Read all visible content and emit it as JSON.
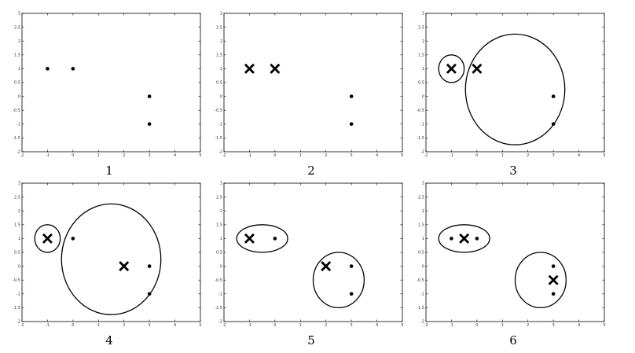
{
  "figure": {
    "panels": [
      "1",
      "2",
      "3",
      "4",
      "5",
      "6"
    ]
  },
  "colors": {
    "ink": "#000000",
    "background": "#ffffff"
  },
  "chart_data": [
    {
      "type": "scatter",
      "label": "1",
      "xlim": [
        -2,
        5
      ],
      "ylim": [
        -2,
        3
      ],
      "xticks": [
        "-2",
        "-1",
        "0",
        "1",
        "2",
        "3",
        "4",
        "5"
      ],
      "yticks": [
        "-2",
        "-1.5",
        "-1",
        "-0.5",
        "0",
        "0.5",
        "1",
        "1.5",
        "2",
        "2.5",
        "3"
      ],
      "points": [
        [
          -1,
          1
        ],
        [
          0,
          1
        ],
        [
          3,
          0
        ],
        [
          3,
          -1
        ]
      ],
      "centers": [],
      "ellipses": []
    },
    {
      "type": "scatter",
      "label": "2",
      "xlim": [
        -2,
        5
      ],
      "ylim": [
        -2,
        3
      ],
      "xticks": [
        "-2",
        "-1",
        "0",
        "1",
        "2",
        "3",
        "4",
        "5"
      ],
      "yticks": [
        "-2",
        "-1.5",
        "-1",
        "-0.5",
        "0",
        "0.5",
        "1",
        "1.5",
        "2",
        "2.5",
        "3"
      ],
      "points": [
        [
          3,
          0
        ],
        [
          3,
          -1
        ]
      ],
      "centers": [
        [
          -1,
          1
        ],
        [
          0,
          1
        ]
      ],
      "ellipses": []
    },
    {
      "type": "scatter",
      "label": "3",
      "xlim": [
        -2,
        5
      ],
      "ylim": [
        -2,
        3
      ],
      "xticks": [
        "-2",
        "-1",
        "0",
        "1",
        "2",
        "3",
        "4",
        "5"
      ],
      "yticks": [
        "-2",
        "-1.5",
        "-1",
        "-0.5",
        "0",
        "0.5",
        "1",
        "1.5",
        "2",
        "2.5",
        "3"
      ],
      "points": [
        [
          3,
          0
        ],
        [
          3,
          -1
        ]
      ],
      "centers": [
        [
          -1,
          1
        ],
        [
          0,
          1
        ]
      ],
      "ellipses": [
        {
          "cx": -1,
          "cy": 1,
          "rx": 0.5,
          "ry": 0.5
        },
        {
          "cx": 1.5,
          "cy": 0.25,
          "rx": 1.95,
          "ry": 2.0
        }
      ]
    },
    {
      "type": "scatter",
      "label": "4",
      "xlim": [
        -2,
        5
      ],
      "ylim": [
        -2,
        3
      ],
      "xticks": [
        "-2",
        "-1",
        "0",
        "1",
        "2",
        "3",
        "4",
        "5"
      ],
      "yticks": [
        "-2",
        "-1.5",
        "-1",
        "-0.5",
        "0",
        "0.5",
        "1",
        "1.5",
        "2",
        "2.5",
        "3"
      ],
      "points": [
        [
          0,
          1
        ],
        [
          3,
          0
        ],
        [
          3,
          -1
        ]
      ],
      "centers": [
        [
          -1,
          1
        ],
        [
          2,
          0
        ]
      ],
      "ellipses": [
        {
          "cx": -1,
          "cy": 1,
          "rx": 0.5,
          "ry": 0.5
        },
        {
          "cx": 1.5,
          "cy": 0.25,
          "rx": 1.95,
          "ry": 2.0
        }
      ]
    },
    {
      "type": "scatter",
      "label": "5",
      "xlim": [
        -2,
        5
      ],
      "ylim": [
        -2,
        3
      ],
      "xticks": [
        "-2",
        "-1",
        "0",
        "1",
        "2",
        "3",
        "4",
        "5"
      ],
      "yticks": [
        "-2",
        "-1.5",
        "-1",
        "-0.5",
        "0",
        "0.5",
        "1",
        "1.5",
        "2",
        "2.5",
        "3"
      ],
      "points": [
        [
          0,
          1
        ],
        [
          3,
          0
        ],
        [
          3,
          -1
        ]
      ],
      "centers": [
        [
          -1,
          1
        ],
        [
          2,
          0
        ]
      ],
      "ellipses": [
        {
          "cx": -0.5,
          "cy": 1,
          "rx": 1.0,
          "ry": 0.5
        },
        {
          "cx": 2.5,
          "cy": -0.5,
          "rx": 1.0,
          "ry": 1.0
        }
      ]
    },
    {
      "type": "scatter",
      "label": "6",
      "xlim": [
        -2,
        5
      ],
      "ylim": [
        -2,
        3
      ],
      "xticks": [
        "-2",
        "-1",
        "0",
        "1",
        "2",
        "3",
        "4",
        "5"
      ],
      "yticks": [
        "-2",
        "-1.5",
        "-1",
        "-0.5",
        "0",
        "0.5",
        "1",
        "1.5",
        "2",
        "2.5",
        "3"
      ],
      "points": [
        [
          -1,
          1
        ],
        [
          0,
          1
        ],
        [
          3,
          0
        ],
        [
          3,
          -1
        ]
      ],
      "centers": [
        [
          -0.5,
          1
        ],
        [
          3,
          -0.5
        ]
      ],
      "ellipses": [
        {
          "cx": -0.5,
          "cy": 1,
          "rx": 1.0,
          "ry": 0.5
        },
        {
          "cx": 2.5,
          "cy": -0.5,
          "rx": 1.0,
          "ry": 1.0
        }
      ]
    }
  ]
}
